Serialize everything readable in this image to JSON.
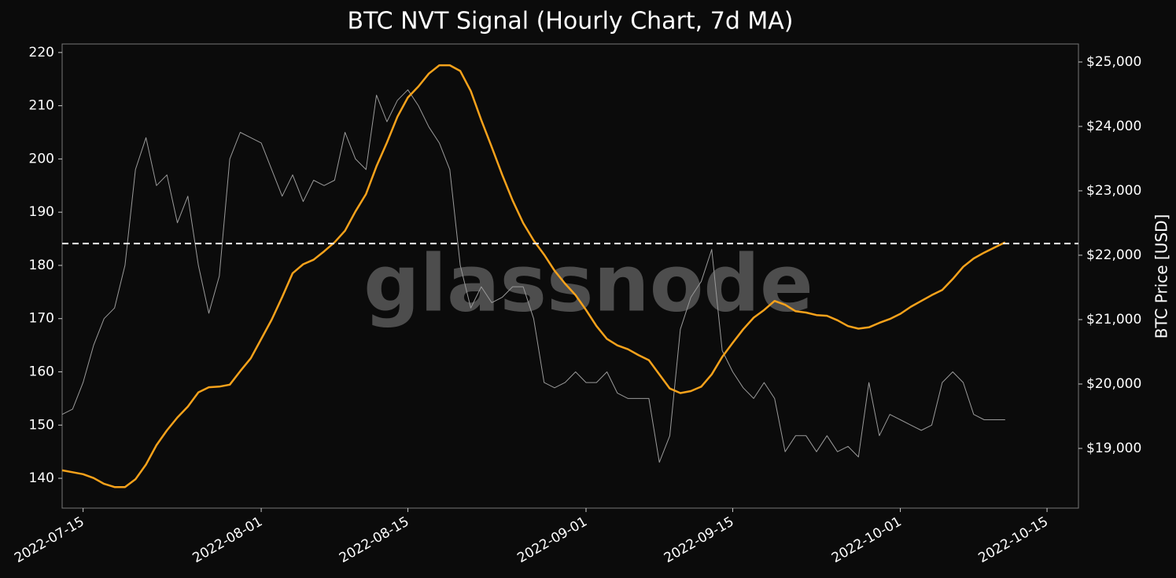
{
  "chart_data": {
    "type": "line",
    "title": "BTC NVT Signal (Hourly Chart, 7d MA)",
    "y2_label": "BTC Price [USD]",
    "watermark": "glassnode",
    "x": [
      "2022-07-13",
      "2022-07-14",
      "2022-07-15",
      "2022-07-16",
      "2022-07-17",
      "2022-07-18",
      "2022-07-19",
      "2022-07-20",
      "2022-07-21",
      "2022-07-22",
      "2022-07-23",
      "2022-07-24",
      "2022-07-25",
      "2022-07-26",
      "2022-07-27",
      "2022-07-28",
      "2022-07-29",
      "2022-07-30",
      "2022-07-31",
      "2022-08-01",
      "2022-08-02",
      "2022-08-03",
      "2022-08-04",
      "2022-08-05",
      "2022-08-06",
      "2022-08-07",
      "2022-08-08",
      "2022-08-09",
      "2022-08-10",
      "2022-08-11",
      "2022-08-12",
      "2022-08-13",
      "2022-08-14",
      "2022-08-15",
      "2022-08-16",
      "2022-08-17",
      "2022-08-18",
      "2022-08-19",
      "2022-08-20",
      "2022-08-21",
      "2022-08-22",
      "2022-08-23",
      "2022-08-24",
      "2022-08-25",
      "2022-08-26",
      "2022-08-27",
      "2022-08-28",
      "2022-08-29",
      "2022-08-30",
      "2022-08-31",
      "2022-09-01",
      "2022-09-02",
      "2022-09-03",
      "2022-09-04",
      "2022-09-05",
      "2022-09-06",
      "2022-09-07",
      "2022-09-08",
      "2022-09-09",
      "2022-09-10",
      "2022-09-11",
      "2022-09-12",
      "2022-09-13",
      "2022-09-14",
      "2022-09-15",
      "2022-09-16",
      "2022-09-17",
      "2022-09-18",
      "2022-09-19",
      "2022-09-20",
      "2022-09-21",
      "2022-09-22",
      "2022-09-23",
      "2022-09-24",
      "2022-09-25",
      "2022-09-26",
      "2022-09-27",
      "2022-09-28",
      "2022-09-29",
      "2022-09-30",
      "2022-10-01",
      "2022-10-02",
      "2022-10-03",
      "2022-10-04",
      "2022-10-05",
      "2022-10-06",
      "2022-10-07",
      "2022-10-08",
      "2022-10-09",
      "2022-10-10",
      "2022-10-11"
    ],
    "series": [
      {
        "color": "#9a9a9a",
        "width": 1,
        "values": [
          152,
          153,
          158,
          165,
          170,
          172,
          180,
          198,
          204,
          195,
          197,
          188,
          193,
          180,
          171,
          178,
          200,
          205,
          204,
          203,
          198,
          193,
          197,
          192,
          196,
          195,
          196,
          205,
          200,
          198,
          212,
          207,
          211,
          213,
          210,
          206,
          203,
          198,
          180,
          172,
          176,
          173,
          174,
          176,
          176,
          170,
          158,
          157,
          158,
          160,
          158,
          158,
          160,
          156,
          155,
          155,
          155,
          143,
          148,
          168,
          174,
          177,
          183,
          164,
          160,
          157,
          155,
          158,
          155,
          145,
          148,
          148,
          145,
          148,
          145,
          146,
          144,
          158,
          148,
          152,
          151,
          150,
          149,
          150,
          158,
          160,
          158,
          152,
          151,
          151,
          151
        ]
      },
      {
        "color": "#f7a21b",
        "width": 2.5,
        "axis": "y2",
        "values": [
          18660,
          18630,
          18600,
          18540,
          18450,
          18400,
          18400,
          18520,
          18750,
          19050,
          19280,
          19480,
          19650,
          19870,
          19950,
          19960,
          19990,
          20200,
          20400,
          20700,
          21000,
          21350,
          21720,
          21860,
          21930,
          22060,
          22200,
          22380,
          22680,
          22950,
          23380,
          23750,
          24150,
          24450,
          24620,
          24820,
          24950,
          24950,
          24860,
          24550,
          24100,
          23680,
          23250,
          22850,
          22500,
          22230,
          22010,
          21760,
          21560,
          21380,
          21150,
          20900,
          20700,
          20600,
          20540,
          20450,
          20370,
          20150,
          19930,
          19860,
          19890,
          19960,
          20150,
          20420,
          20640,
          20850,
          21030,
          21150,
          21290,
          21230,
          21130,
          21110,
          21070,
          21060,
          20990,
          20900,
          20860,
          20880,
          20950,
          21010,
          21090,
          21200,
          21290,
          21380,
          21460,
          21630,
          21820,
          21950,
          22040,
          22120,
          22200
        ]
      }
    ],
    "reference_line": {
      "value": 184.1,
      "color": "#ffffff",
      "dashed": true
    },
    "xlim": [
      "2022-07-13",
      "2022-10-18"
    ],
    "xticks": [
      "2022-07-15",
      "2022-08-01",
      "2022-08-15",
      "2022-09-01",
      "2022-09-15",
      "2022-10-01",
      "2022-10-15"
    ],
    "ylim": [
      134.4,
      221.6
    ],
    "yticks": [
      140,
      150,
      160,
      170,
      180,
      190,
      200,
      210,
      220
    ],
    "y2lim": [
      18073,
      25280
    ],
    "y2ticks": [
      {
        "value": 19000,
        "label": "$19,000"
      },
      {
        "value": 20000,
        "label": "$20,000"
      },
      {
        "value": 21000,
        "label": "$21,000"
      },
      {
        "value": 22000,
        "label": "$22,000"
      },
      {
        "value": 23000,
        "label": "$23,000"
      },
      {
        "value": 24000,
        "label": "$24,000"
      },
      {
        "value": 25000,
        "label": "$25,000"
      }
    ],
    "grid": false
  }
}
